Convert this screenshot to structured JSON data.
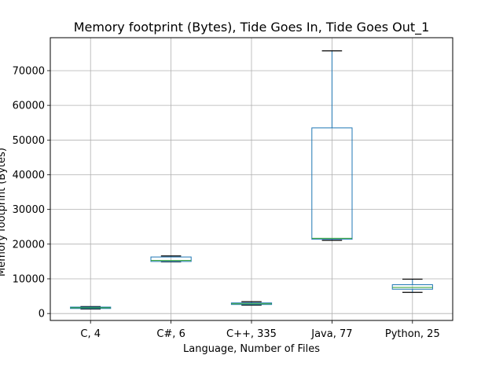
{
  "chart_data": {
    "type": "box",
    "title": "Memory footprint (Bytes), Tide Goes In, Tide Goes Out_1",
    "xlabel": "Language, Number of Files",
    "ylabel": "Memory footprint (Bytes)",
    "ylim": [
      -2000,
      79500
    ],
    "yticks": [
      0,
      10000,
      20000,
      30000,
      40000,
      50000,
      60000,
      70000
    ],
    "grid": true,
    "colors": {
      "box": "#1f77b4",
      "median": "#2ca02c",
      "whisker": "#1f77b4",
      "cap": "#000000",
      "grid": "#b0b0b0"
    },
    "categories": [
      "C, 4",
      "C#, 6",
      "C++, 335",
      "Java, 77",
      "Python, 25"
    ],
    "boxes": [
      {
        "label": "C, 4",
        "whislo": 1300,
        "q1": 1450,
        "med": 1650,
        "q3": 1850,
        "whishi": 2000
      },
      {
        "label": "C#, 6",
        "whislo": 14900,
        "q1": 15000,
        "med": 15300,
        "q3": 16300,
        "whishi": 16600
      },
      {
        "label": "C++, 335",
        "whislo": 2400,
        "q1": 2600,
        "med": 2800,
        "q3": 3050,
        "whishi": 3400
      },
      {
        "label": "Java, 77",
        "whislo": 21100,
        "q1": 21400,
        "med": 21700,
        "q3": 53500,
        "whishi": 75700
      },
      {
        "label": "Python, 25",
        "whislo": 6100,
        "q1": 7000,
        "med": 7500,
        "q3": 8300,
        "whishi": 9900
      }
    ]
  }
}
